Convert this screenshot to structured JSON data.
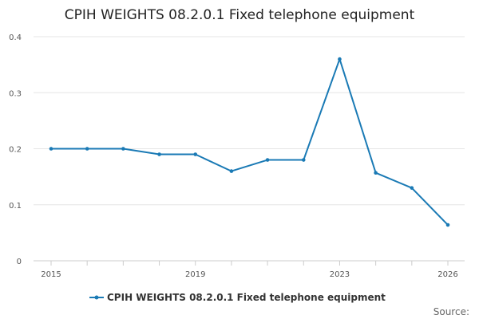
{
  "chart_data": {
    "type": "line",
    "title": "CPIH WEIGHTS 08.2.0.1 Fixed telephone equipment",
    "x": [
      2015,
      2016,
      2017,
      2018,
      2019,
      2020,
      2021,
      2022,
      2023,
      2024,
      2025,
      2026
    ],
    "series": [
      {
        "name": "CPIH WEIGHTS 08.2.0.1 Fixed telephone equipment",
        "values": [
          0.2,
          0.2,
          0.2,
          0.19,
          0.19,
          0.16,
          0.18,
          0.18,
          0.36,
          0.157,
          0.13,
          0.064
        ],
        "color": "#1a7ab5"
      }
    ],
    "xlim": [
      2015,
      2026
    ],
    "ylim": [
      0,
      0.4
    ],
    "xticks": [
      2015,
      2019,
      2023,
      2026
    ],
    "xticks_minor": [
      2016,
      2017,
      2018,
      2020,
      2021,
      2022,
      2024,
      2025
    ],
    "yticks": [
      0,
      0.1,
      0.2,
      0.3,
      0.4
    ],
    "grid": true,
    "legend_position": "bottom-center",
    "source_label": "Source:"
  }
}
